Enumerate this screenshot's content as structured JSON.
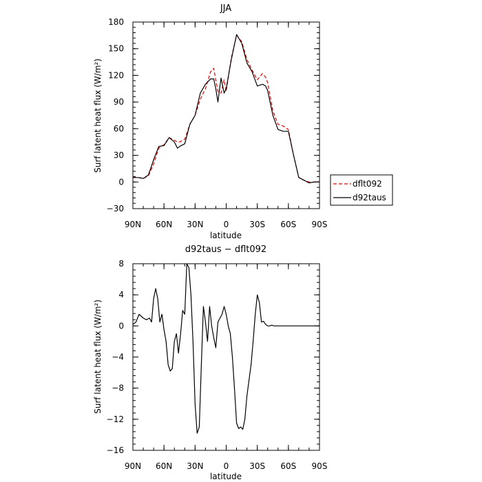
{
  "chart_data": [
    {
      "type": "line",
      "title": "JJA",
      "xlabel": "latitude",
      "ylabel": "Surf latent heat flux (W/m²)",
      "ylim": [
        -30,
        180
      ],
      "xlim": [
        90,
        -90
      ],
      "x_ticks": [
        90,
        60,
        30,
        0,
        -30,
        -60,
        -90
      ],
      "x_tick_labels": [
        "90N",
        "60N",
        "30N",
        "0",
        "30S",
        "60S",
        "90S"
      ],
      "y_ticks": [
        -30,
        0,
        30,
        60,
        90,
        120,
        150,
        180
      ],
      "y_tick_labels": [
        "−30",
        "0",
        "30",
        "60",
        "90",
        "120",
        "150",
        "180"
      ],
      "legend_position": "right",
      "series": [
        {
          "name": "dflt092",
          "color": "#e00000",
          "dash": "dashed",
          "x": [
            90,
            85,
            80,
            75,
            70,
            65,
            60,
            55,
            50,
            47,
            45,
            40,
            35,
            30,
            25,
            20,
            15,
            12,
            10,
            8,
            5,
            2,
            0,
            -3,
            -5,
            -10,
            -15,
            -20,
            -25,
            -30,
            -35,
            -38,
            -40,
            -45,
            -50,
            -55,
            -60,
            -65,
            -70,
            -75,
            -80,
            -85,
            -90
          ],
          "y": [
            5,
            5,
            4,
            7,
            20,
            38,
            42,
            50,
            47,
            45,
            45,
            48,
            65,
            75,
            93,
            105,
            124,
            128,
            115,
            102,
            100,
            115,
            102,
            125,
            140,
            165,
            158,
            138,
            126,
            115,
            122,
            118,
            112,
            80,
            65,
            63,
            59,
            30,
            5,
            2,
            0,
            0,
            0
          ]
        },
        {
          "name": "d92taus",
          "color": "#000000",
          "dash": "solid",
          "x": [
            90,
            85,
            80,
            75,
            70,
            65,
            60,
            55,
            50,
            47,
            45,
            40,
            35,
            30,
            25,
            20,
            15,
            12,
            10,
            8,
            5,
            2,
            0,
            -3,
            -5,
            -10,
            -15,
            -20,
            -25,
            -30,
            -35,
            -38,
            -40,
            -45,
            -50,
            -55,
            -60,
            -65,
            -70,
            -75,
            -80,
            -85,
            -90
          ],
          "y": [
            5,
            5,
            4,
            8,
            25,
            40,
            41,
            50,
            45,
            38,
            40,
            43,
            65,
            75,
            100,
            110,
            116,
            116,
            105,
            90,
            117,
            100,
            105,
            125,
            138,
            166,
            156,
            134,
            124,
            108,
            110,
            108,
            103,
            75,
            59,
            57,
            57,
            30,
            5,
            2,
            -1,
            0,
            0
          ]
        }
      ]
    },
    {
      "type": "line",
      "title": "d92taus − dflt092",
      "xlabel": "latitude",
      "ylabel": "Surf latent heat flux (W/m²)",
      "ylim": [
        -16,
        8
      ],
      "xlim": [
        90,
        -90
      ],
      "x_ticks": [
        90,
        60,
        30,
        0,
        -30,
        -60,
        -90
      ],
      "x_tick_labels": [
        "90N",
        "60N",
        "30N",
        "0",
        "30S",
        "60S",
        "90S"
      ],
      "y_ticks": [
        -16,
        -12,
        -8,
        -4,
        0,
        4,
        8
      ],
      "y_tick_labels": [
        "−16",
        "−12",
        "−8",
        "−4",
        "0",
        "4",
        "8"
      ],
      "series": [
        {
          "color": "#000000",
          "dash": "solid",
          "x": [
            90,
            87,
            84,
            80,
            77,
            74,
            72,
            70,
            68,
            66,
            64,
            62,
            60,
            58,
            56,
            54,
            52,
            50,
            48,
            46,
            44,
            42,
            40,
            38,
            36,
            34,
            32,
            30,
            28,
            26,
            24,
            22,
            20,
            18,
            16,
            14,
            12,
            10,
            8,
            6,
            4,
            2,
            0,
            -2,
            -4,
            -6,
            -8,
            -10,
            -12,
            -14,
            -16,
            -18,
            -20,
            -22,
            -24,
            -26,
            -28,
            -30,
            -32,
            -34,
            -36,
            -38,
            -40,
            -42,
            -44,
            -46,
            -48,
            -50,
            -52,
            -54,
            -56,
            -58,
            -60,
            -62,
            -64,
            -66,
            -68,
            -70,
            -75,
            -80,
            -85,
            -90
          ],
          "y": [
            0.2,
            0.5,
            1.5,
            1.0,
            0.8,
            1.0,
            0.5,
            3.5,
            4.8,
            3.5,
            0.5,
            1.5,
            -0.5,
            -2.0,
            -5.0,
            -5.8,
            -5.5,
            -2.0,
            -1.0,
            -3.5,
            -1.0,
            2.0,
            1.5,
            8.0,
            7.5,
            4.0,
            -2.0,
            -10.0,
            -13.8,
            -13.0,
            -5.0,
            2.5,
            0.5,
            -2.0,
            2.5,
            0.0,
            -1.5,
            -2.8,
            0.5,
            1.0,
            1.5,
            2.5,
            1.5,
            0.0,
            -1.0,
            -4.0,
            -8.0,
            -12.5,
            -13.2,
            -13.0,
            -13.3,
            -12.0,
            -9.0,
            -7.0,
            -5.0,
            -2.0,
            1.5,
            4.0,
            3.0,
            0.5,
            0.6,
            0.2,
            0.0,
            0.0,
            0.1,
            0.0,
            0.0,
            0.0,
            0.0,
            0.0,
            0.0,
            0.0,
            0.0,
            0.0,
            0.0,
            0.0,
            0.0,
            0.0,
            0.0,
            0.0,
            0.0,
            0.0
          ]
        }
      ]
    }
  ]
}
